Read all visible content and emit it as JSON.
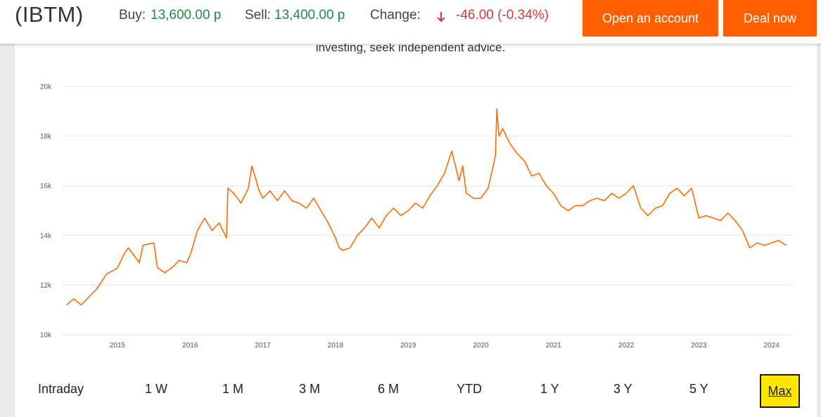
{
  "header": {
    "ticker": "(IBTM)",
    "buy_label": "Buy:",
    "buy_value": "13,600.00 p",
    "sell_label": "Sell:",
    "sell_value": "13,400.00 p",
    "change_label": "Change:",
    "change_value": "-46.00 (-0.34%)",
    "change_direction": "down",
    "open_account_label": "Open an account",
    "deal_now_label": "Deal now"
  },
  "notice": {
    "text": "investing, seek independent advice."
  },
  "colors": {
    "brand": "#ff5f00",
    "up": "#1f8a4a",
    "down": "#d93636",
    "line": "#ff6b00",
    "selected_range": "#ffe600"
  },
  "range_selector": {
    "options": [
      "Intraday",
      "1 W",
      "1 M",
      "3 M",
      "6 M",
      "YTD",
      "1 Y",
      "3 Y",
      "5 Y",
      "Max"
    ],
    "selected": "Max"
  },
  "chart_data": {
    "type": "line",
    "ylim": [
      10000,
      20000
    ],
    "y_ticks": [
      "10k",
      "12k",
      "14k",
      "16k",
      "18k",
      "20k"
    ],
    "x_ticks": [
      "2015",
      "2016",
      "2017",
      "2018",
      "2019",
      "2020",
      "2021",
      "2022",
      "2023",
      "2024"
    ],
    "grid": true,
    "series": [
      {
        "x": [
          2014.3,
          2014.4,
          2014.5,
          2014.6,
          2014.7,
          2014.75,
          2014.85,
          2014.95,
          2015.0,
          2015.1,
          2015.15,
          2015.3,
          2015.35,
          2015.5,
          2015.55,
          2015.65,
          2015.75,
          2015.85,
          2015.95,
          2016.0,
          2016.1,
          2016.2,
          2016.3,
          2016.4,
          2016.5,
          2016.52,
          2016.6,
          2016.7,
          2016.8,
          2016.85,
          2016.95,
          2017.0,
          2017.1,
          2017.2,
          2017.3,
          2017.4,
          2017.5,
          2017.6,
          2017.7,
          2017.8,
          2017.9,
          2018.0,
          2018.05,
          2018.1,
          2018.2,
          2018.3,
          2018.4,
          2018.5,
          2018.6,
          2018.7,
          2018.8,
          2018.9,
          2019.0,
          2019.1,
          2019.2,
          2019.3,
          2019.4,
          2019.5,
          2019.6,
          2019.7,
          2019.75,
          2019.8,
          2019.9,
          2020.0,
          2020.1,
          2020.2,
          2020.22,
          2020.25,
          2020.3,
          2020.35,
          2020.4,
          2020.5,
          2020.6,
          2020.7,
          2020.8,
          2020.9,
          2021.0,
          2021.1,
          2021.2,
          2021.3,
          2021.4,
          2021.5,
          2021.6,
          2021.7,
          2021.8,
          2021.9,
          2022.0,
          2022.1,
          2022.2,
          2022.3,
          2022.4,
          2022.5,
          2022.6,
          2022.7,
          2022.8,
          2022.9,
          2023.0,
          2023.1,
          2023.2,
          2023.3,
          2023.4,
          2023.5,
          2023.6,
          2023.7,
          2023.8,
          2023.9,
          2024.0,
          2024.1,
          2024.2
        ],
        "y": [
          11200,
          11450,
          11200,
          11500,
          11800,
          12000,
          12450,
          12600,
          12700,
          13300,
          13500,
          12900,
          13600,
          13700,
          12700,
          12500,
          12700,
          13000,
          12900,
          13200,
          14200,
          14700,
          14200,
          14500,
          13900,
          15900,
          15700,
          15300,
          15900,
          16800,
          15800,
          15500,
          15800,
          15400,
          15800,
          15400,
          15300,
          15100,
          15500,
          15000,
          14500,
          13900,
          13500,
          13400,
          13500,
          14000,
          14300,
          14700,
          14300,
          14800,
          15100,
          14800,
          15000,
          15300,
          15100,
          15600,
          16000,
          16500,
          17400,
          16200,
          16800,
          15700,
          15500,
          15500,
          15900,
          17200,
          19100,
          18000,
          18300,
          18000,
          17700,
          17300,
          17000,
          16400,
          16500,
          16000,
          15700,
          15200,
          15000,
          15200,
          15200,
          15400,
          15500,
          15400,
          15700,
          15500,
          15700,
          16000,
          15100,
          14800,
          15100,
          15200,
          15700,
          15900,
          15600,
          15900,
          14700,
          14800,
          14700,
          14600,
          14900,
          14600,
          14200,
          13500,
          13700,
          13600,
          13700,
          13800,
          13600
        ]
      }
    ]
  }
}
